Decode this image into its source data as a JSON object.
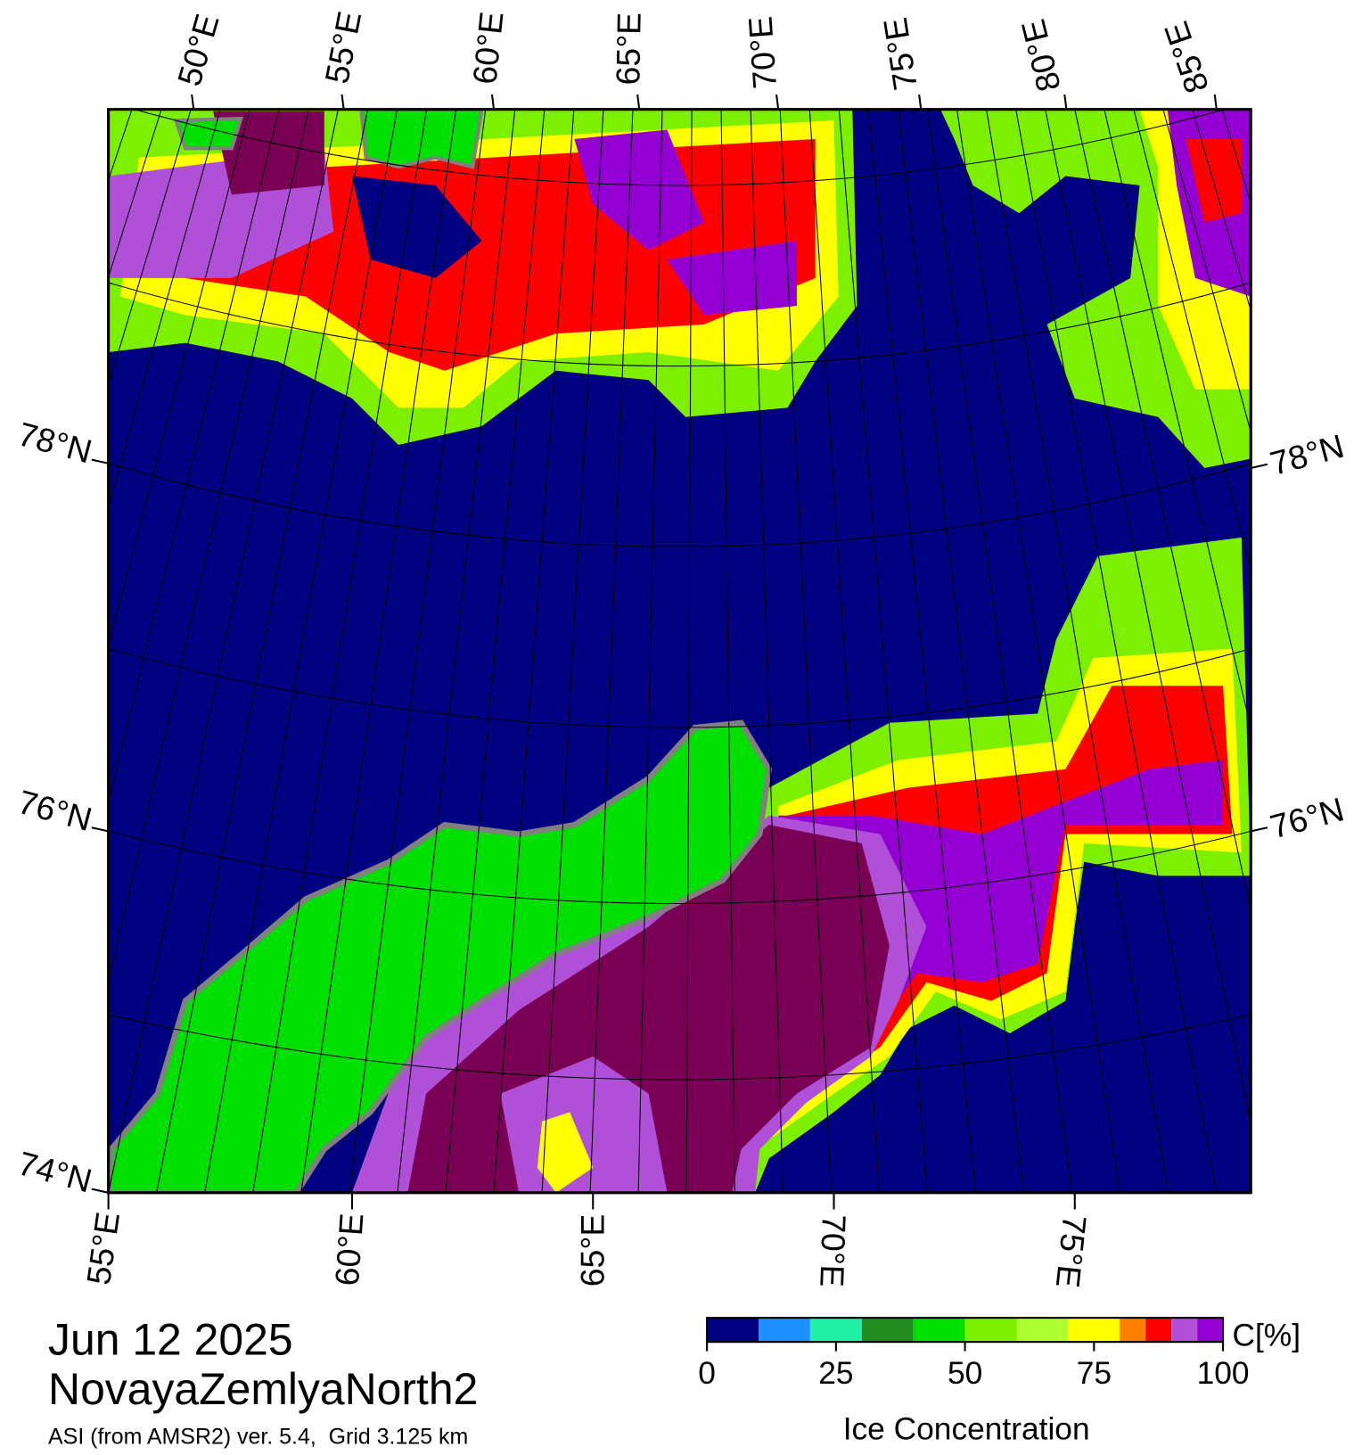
{
  "title": "Jun 12 2025",
  "region": "NovayaZemlyaNorth2",
  "subtitle": "ASI (from AMSR2) ver. 5.4,  Grid 3.125 km",
  "map": {
    "top_lon_labels": [
      "50°E",
      "55°E",
      "60°E",
      "65°E",
      "70°E",
      "75°E",
      "80°E",
      "85°E"
    ],
    "bottom_lon_labels": [
      "55°E",
      "60°E",
      "65°E",
      "70°E",
      "75°E"
    ],
    "left_lat_labels": [
      "78°N",
      "76°N",
      "74°N"
    ],
    "right_lat_labels": [
      "78°N",
      "76°N"
    ]
  },
  "colorbar": {
    "unit_label": "C[%]",
    "label": "Ice Concentration",
    "bounds": [
      0,
      10,
      20,
      30,
      40,
      50,
      60,
      70,
      80,
      85,
      90,
      95,
      100
    ],
    "colors": [
      "#000080",
      "#1e90ff",
      "#20f0a8",
      "#228b22",
      "#00e000",
      "#7cf000",
      "#adff2f",
      "#ffff00",
      "#ff8000",
      "#ff0000",
      "#b050d8",
      "#9400d3"
    ],
    "ticks": [
      0,
      25,
      50,
      75,
      100
    ]
  }
}
